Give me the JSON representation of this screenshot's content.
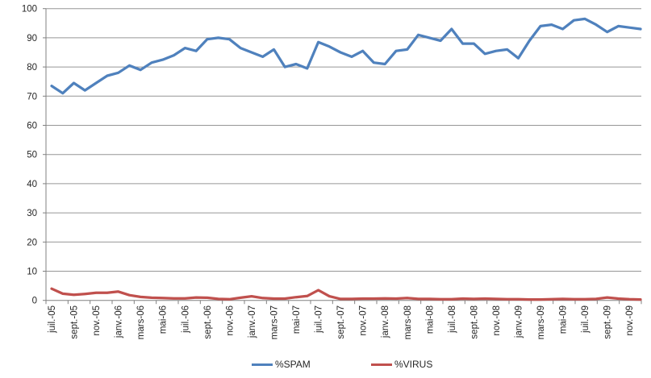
{
  "chart_data": {
    "type": "line",
    "title": "",
    "xlabel": "",
    "ylabel": "",
    "ylim": [
      0,
      100
    ],
    "y_ticks": [
      0,
      10,
      20,
      30,
      40,
      50,
      60,
      70,
      80,
      90,
      100
    ],
    "grid": "horizontal",
    "legend_position": "bottom",
    "x_tick_labels": [
      "juil.-05",
      "sept.-05",
      "nov.-05",
      "janv.-06",
      "mars-06",
      "mai-06",
      "juil.-06",
      "sept.-06",
      "nov.-06",
      "janv.-07",
      "mars-07",
      "mai-07",
      "juil.-07",
      "sept.-07",
      "nov.-07",
      "janv.-08",
      "mars-08",
      "mai-08",
      "juil.-08",
      "sept.-08",
      "nov.-08",
      "janv.-09",
      "mars-09",
      "mai-09",
      "juil.-09",
      "sept.-09",
      "nov.-09"
    ],
    "months_per_x_tick": 2,
    "n_points": 54,
    "series": [
      {
        "name": "%SPAM",
        "color": "#4F81BD",
        "values": [
          73.5,
          71,
          74.5,
          72,
          74.5,
          77,
          78,
          80.5,
          79,
          81.5,
          82.5,
          84,
          86.5,
          85.5,
          89.5,
          90,
          89.5,
          86.5,
          85,
          83.5,
          86,
          80,
          81,
          79.5,
          88.5,
          87,
          85,
          83.5,
          85.5,
          81.5,
          81,
          85.5,
          86,
          91,
          90,
          89,
          93,
          88,
          88,
          84.5,
          85.5,
          86,
          83,
          89,
          94,
          94.5,
          93,
          96,
          96.5,
          94.5,
          92,
          94,
          93.5,
          93
        ]
      },
      {
        "name": "%VIRUS",
        "color": "#C0504D",
        "values": [
          4,
          2.3,
          1.9,
          2.2,
          2.6,
          2.6,
          3,
          1.8,
          1.2,
          0.9,
          0.8,
          0.7,
          0.7,
          1,
          0.9,
          0.5,
          0.4,
          0.9,
          1.4,
          0.8,
          0.6,
          0.6,
          1.1,
          1.5,
          3.5,
          1.4,
          0.5,
          0.5,
          0.6,
          0.6,
          0.7,
          0.6,
          0.8,
          0.5,
          0.5,
          0.4,
          0.4,
          0.6,
          0.5,
          0.6,
          0.5,
          0.4,
          0.4,
          0.3,
          0.3,
          0.4,
          0.5,
          0.4,
          0.4,
          0.5,
          1,
          0.6,
          0.4,
          0.3
        ]
      }
    ],
    "colors": {
      "axis": "#808080",
      "gridline": "#969696",
      "tick_label": "#262626"
    }
  },
  "legend": {
    "spam_label": "%SPAM",
    "virus_label": "%VIRUS"
  }
}
